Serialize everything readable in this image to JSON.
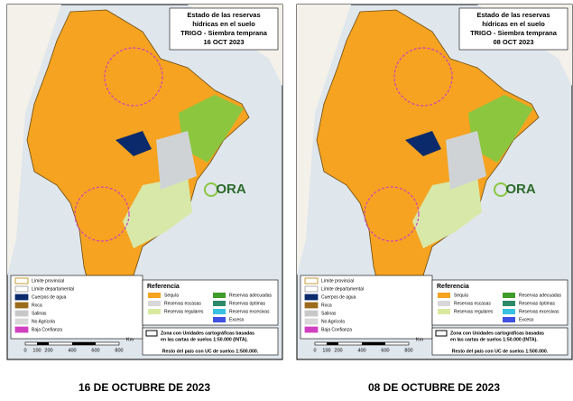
{
  "panels": [
    {
      "title": [
        "Estado de las reservas",
        "hídricas en el suelo",
        "TRIGO - Siembra temprana",
        "16 OCT 2023"
      ],
      "logo": "ORA",
      "legend": [
        "Límite provincial",
        "Límite departamental",
        "Cuerpos de agua",
        "Roca",
        "Salinas",
        "No Agrícola",
        "Baja Confianza"
      ],
      "reference_title": "Referencia",
      "reference": [
        "Sequía",
        "Reservas escasas",
        "Reservas regulares",
        "Reservas adecuadas",
        "Reservas óptimas",
        "Reservas excesivas",
        "Exceso"
      ],
      "note": [
        "Zona con Unidades cartográficas basadas",
        "en las cartas de suelos 1:50.000 (INTA).",
        "Resto del país con UC de suelos 1:500.000."
      ],
      "scale": [
        "0",
        "100",
        "200",
        "400",
        "600",
        "800"
      ],
      "scale_unit": "Km",
      "caption": "16 DE OCTUBRE DE 2023"
    },
    {
      "title": [
        "Estado de las reservas",
        "hídricas en el suelo",
        "TRIGO - Siembra temprana",
        "08 OCT 2023"
      ],
      "logo": "ORA",
      "legend": [
        "Límite provincial",
        "Límite departamental",
        "Cuerpos de agua",
        "Roca",
        "Salinas",
        "No Agrícola",
        "Baja Confianza"
      ],
      "reference_title": "Referencia",
      "reference": [
        "Sequía",
        "Reservas escasas",
        "Reservas regulares",
        "Reservas adecuadas",
        "Reservas óptimas",
        "Reservas excesivas",
        "Exceso"
      ],
      "note": [
        "Zona con Unidades cartográficas basadas",
        "en las cartas de suelos 1:50.000 (INTA).",
        "Resto del país con UC de suelos 1:500.000."
      ],
      "scale": [
        "0",
        "100",
        "200",
        "400",
        "600",
        "800"
      ],
      "scale_unit": "Km",
      "caption": "08 DE OCTUBRE DE 2023"
    }
  ]
}
